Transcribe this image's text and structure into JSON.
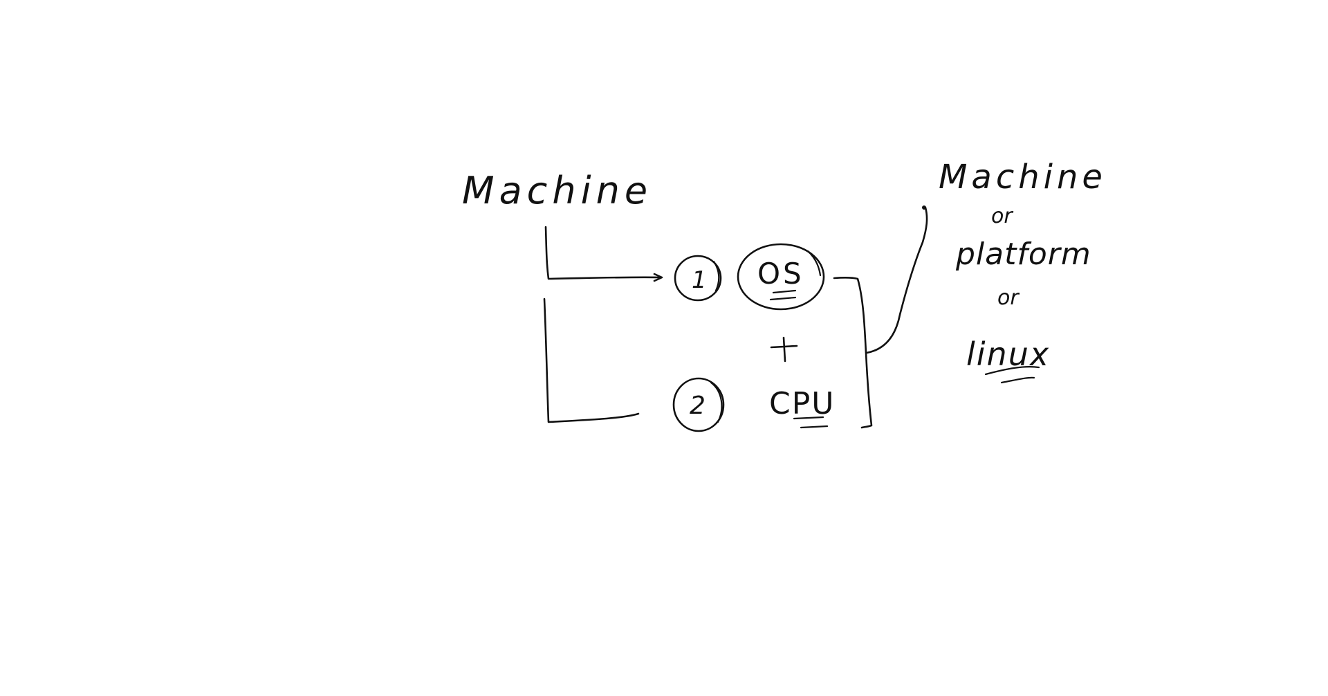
{
  "diagram": {
    "left_title": "Machine",
    "step_one": "1",
    "step_two": "2",
    "os_label": "OS",
    "plus": "+",
    "cpu_label": "CPU",
    "right_title": "Machine",
    "right_or_1": "or",
    "right_platform": "platform",
    "right_or_2": "or",
    "right_linux": "linux",
    "ink_color": "#111111",
    "background_color": "#ffffff"
  }
}
